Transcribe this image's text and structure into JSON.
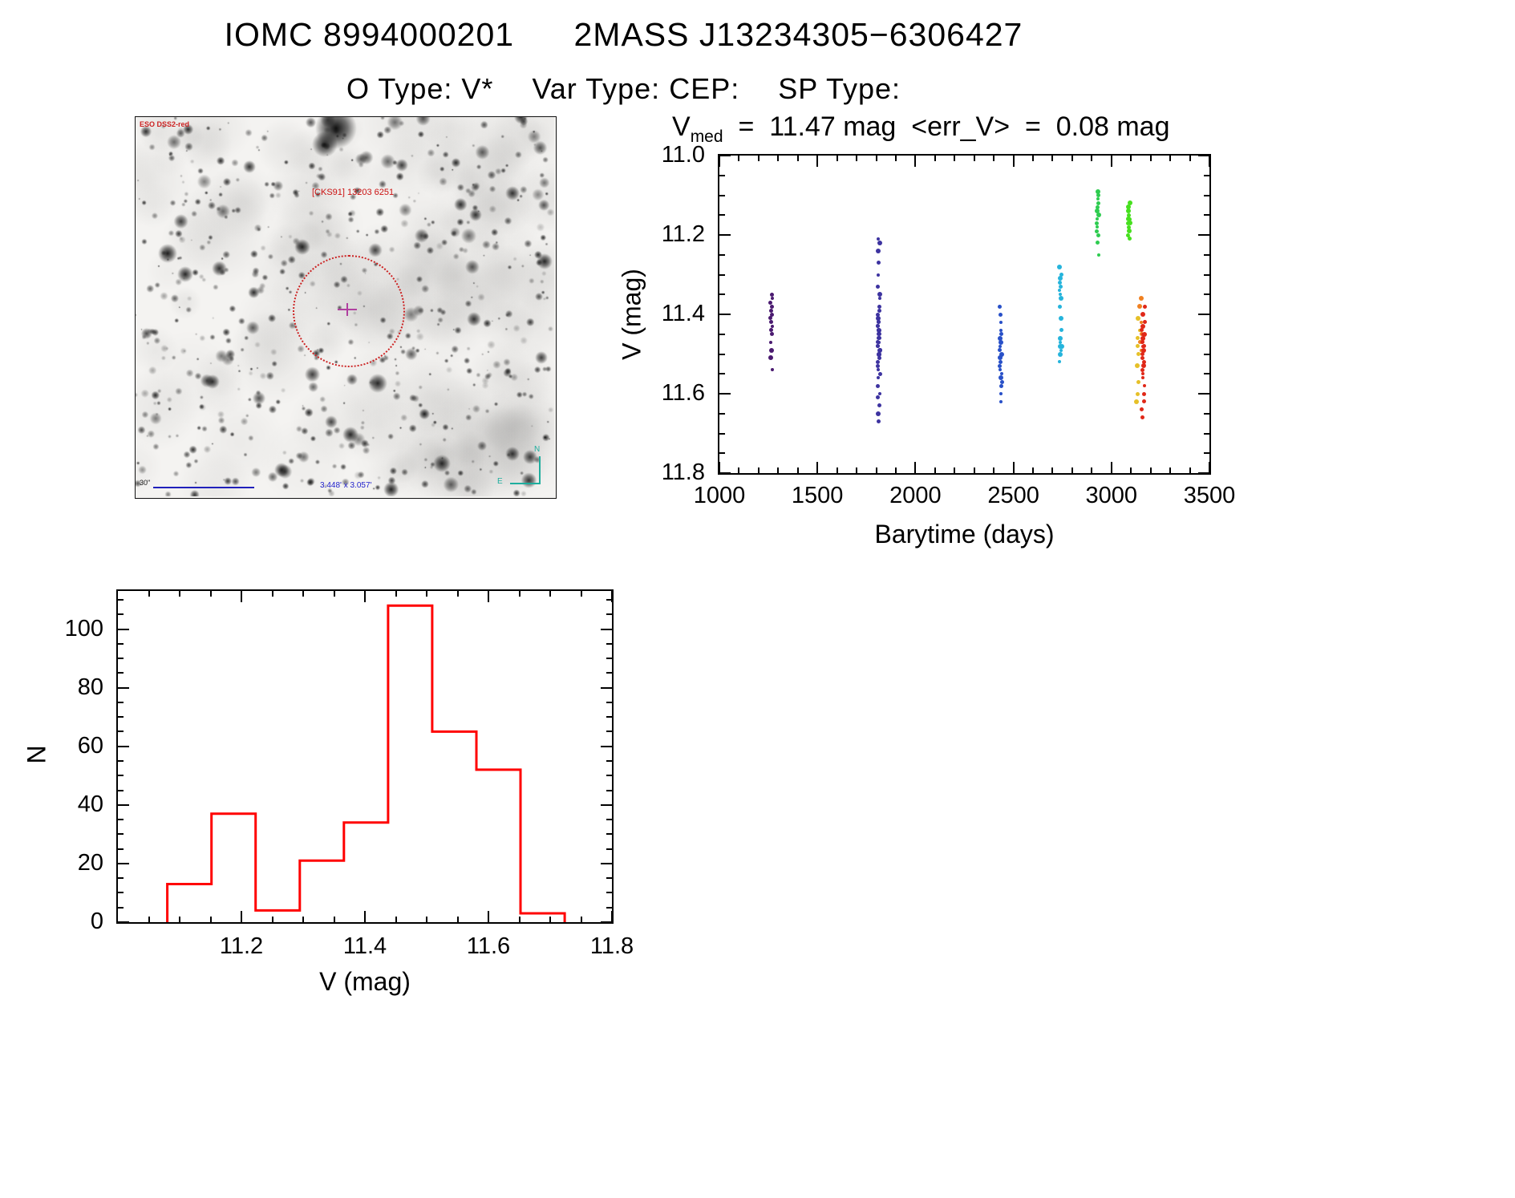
{
  "header": {
    "title_left": "IOMC 8994000201",
    "title_right": "2MASS J13234305−6306427",
    "subtitle_parts": [
      "O Type: V*",
      "Var Type: CEP:",
      "SP Type:"
    ]
  },
  "finder": {
    "survey_label": "ESO DSS2-red",
    "target_label": "[CKS91] 13203  6251",
    "scale_label": "30\"",
    "fov_label": "3.448' x 3.057'",
    "compass_north": "N",
    "compass_east": "E"
  },
  "chart_data": [
    {
      "type": "scatter",
      "title": "V_med = 11.47 mag <err_V> = 0.08 mag",
      "title_parts": {
        "var": "V",
        "sub": "med",
        "rest": "  =  11.47 mag  <err_V>  =  0.08 mag"
      },
      "xlabel": "Barytime (days)",
      "ylabel": "V (mag)",
      "xlim": [
        1000,
        3500
      ],
      "ylim": [
        11.0,
        11.8
      ],
      "y_inverted": true,
      "xticks": [
        1000,
        1500,
        2000,
        2500,
        3000,
        3500
      ],
      "xtick_labels": [
        "1000",
        "1500",
        "2000",
        "2500",
        "3000",
        "3500"
      ],
      "yticks": [
        11.0,
        11.2,
        11.4,
        11.6,
        11.8
      ],
      "ytick_labels": [
        "11.0",
        "11.2",
        "11.4",
        "11.6",
        "11.8"
      ],
      "grid": false,
      "legend": "none",
      "clusters": [
        {
          "name": "cluster-1",
          "x": 1265,
          "color": "#4a1a70",
          "jitter": 5,
          "y": [
            11.35,
            11.36,
            11.37,
            11.38,
            11.39,
            11.4,
            11.41,
            11.42,
            11.43,
            11.44,
            11.45,
            11.47,
            11.49,
            11.51,
            11.54
          ]
        },
        {
          "name": "cluster-2",
          "x": 1813,
          "color": "#3d33a0",
          "jitter": 7,
          "y": [
            11.21,
            11.22,
            11.24,
            11.27,
            11.3,
            11.33,
            11.35,
            11.36,
            11.38,
            11.39,
            11.4,
            11.41,
            11.42,
            11.42,
            11.43,
            11.43,
            11.44,
            11.44,
            11.45,
            11.45,
            11.46,
            11.46,
            11.47,
            11.47,
            11.48,
            11.48,
            11.49,
            11.49,
            11.5,
            11.5,
            11.51,
            11.52,
            11.53,
            11.54,
            11.55,
            11.56,
            11.58,
            11.6,
            11.61,
            11.63,
            11.65,
            11.67
          ]
        },
        {
          "name": "cluster-3",
          "x": 2435,
          "color": "#2850c8",
          "jitter": 6,
          "y": [
            11.38,
            11.4,
            11.42,
            11.44,
            11.45,
            11.46,
            11.47,
            11.48,
            11.49,
            11.5,
            11.51,
            11.52,
            11.53,
            11.54,
            11.55,
            11.56,
            11.57,
            11.58,
            11.6,
            11.62
          ]
        },
        {
          "name": "cluster-4",
          "x": 2740,
          "color": "#25b4dc",
          "jitter": 6,
          "y": [
            11.28,
            11.3,
            11.31,
            11.32,
            11.33,
            11.34,
            11.35,
            11.36,
            11.38,
            11.41,
            11.44,
            11.46,
            11.47,
            11.48,
            11.48,
            11.49,
            11.5,
            11.52
          ]
        },
        {
          "name": "cluster-5",
          "x": 2930,
          "color": "#2ecc50",
          "jitter": 6,
          "y": [
            11.09,
            11.1,
            11.11,
            11.12,
            11.13,
            11.14,
            11.15,
            11.16,
            11.17,
            11.18,
            11.19,
            11.2,
            11.22,
            11.25
          ]
        },
        {
          "name": "cluster-6",
          "x": 3090,
          "color": "#46e01e",
          "jitter": 5,
          "y": [
            11.12,
            11.13,
            11.14,
            11.15,
            11.16,
            11.16,
            11.17,
            11.17,
            11.18,
            11.19,
            11.2,
            11.21
          ]
        },
        {
          "name": "cluster-7",
          "x": 3135,
          "color": "#e6c028",
          "jitter": 8,
          "y": [
            11.41,
            11.44,
            11.46,
            11.48,
            11.5,
            11.53,
            11.57,
            11.6,
            11.62
          ]
        },
        {
          "name": "cluster-8",
          "x": 3150,
          "color": "#f08020",
          "jitter": 6,
          "y": [
            11.36,
            11.38,
            11.42,
            11.45,
            11.47,
            11.49
          ]
        },
        {
          "name": "cluster-9",
          "x": 3162,
          "color": "#e02818",
          "jitter": 8,
          "y": [
            11.38,
            11.4,
            11.42,
            11.43,
            11.44,
            11.45,
            11.45,
            11.46,
            11.46,
            11.47,
            11.47,
            11.48,
            11.48,
            11.49,
            11.5,
            11.51,
            11.52,
            11.53,
            11.54,
            11.55,
            11.56,
            11.58,
            11.6,
            11.62,
            11.64,
            11.66
          ]
        }
      ]
    },
    {
      "type": "bar",
      "title": "",
      "xlabel": "V (mag)",
      "ylabel": "N",
      "xlim": [
        11.0,
        11.8
      ],
      "ylim": [
        0,
        113
      ],
      "xticks": [
        11.2,
        11.4,
        11.6,
        11.8
      ],
      "xtick_labels": [
        "11.2",
        "11.4",
        "11.6",
        "11.8"
      ],
      "yticks": [
        0,
        20,
        40,
        60,
        80,
        100
      ],
      "ytick_labels": [
        "0",
        "20",
        "40",
        "60",
        "80",
        "100"
      ],
      "bin_start": 11.08,
      "bin_width": 0.0715,
      "counts": [
        13,
        37,
        4,
        21,
        34,
        108,
        65,
        52,
        3
      ],
      "color": "#ff0000",
      "grid": false,
      "legend": "none"
    }
  ]
}
